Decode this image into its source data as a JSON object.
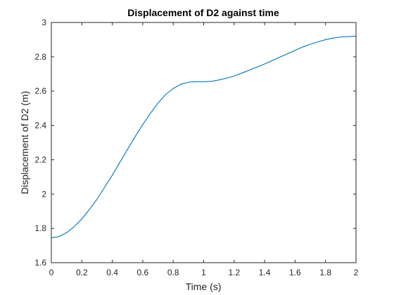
{
  "chart_data": {
    "type": "line",
    "title": "Displacement of D2 against time",
    "xlabel": "Time (s)",
    "ylabel": "Displacement of D2 (m)",
    "xlim": [
      0,
      2
    ],
    "ylim": [
      1.6,
      3
    ],
    "grid": false,
    "xticks": [
      0,
      0.2,
      0.4,
      0.6,
      0.8,
      1,
      1.2,
      1.4,
      1.6,
      1.8,
      2
    ],
    "yticks": [
      1.6,
      1.8,
      2,
      2.2,
      2.4,
      2.6,
      2.8,
      3
    ],
    "xtick_labels": [
      "0",
      "0.2",
      "0.4",
      "0.6",
      "0.8",
      "1",
      "1.2",
      "1.4",
      "1.6",
      "1.8",
      "2"
    ],
    "ytick_labels": [
      "1.6",
      "1.8",
      "2",
      "2.2",
      "2.4",
      "2.6",
      "2.8",
      "3"
    ],
    "series": [
      {
        "color": "#0072bd",
        "x": [
          0,
          0.05,
          0.1,
          0.15,
          0.2,
          0.25,
          0.3,
          0.35,
          0.4,
          0.45,
          0.5,
          0.55,
          0.6,
          0.65,
          0.7,
          0.75,
          0.8,
          0.85,
          0.9,
          0.95,
          1.0,
          1.05,
          1.1,
          1.15,
          1.2,
          1.25,
          1.3,
          1.35,
          1.4,
          1.45,
          1.5,
          1.55,
          1.6,
          1.65,
          1.7,
          1.75,
          1.8,
          1.85,
          1.9,
          1.95,
          2.0
        ],
        "y": [
          1.745,
          1.752,
          1.775,
          1.81,
          1.855,
          1.91,
          1.97,
          2.04,
          2.11,
          2.185,
          2.26,
          2.335,
          2.405,
          2.47,
          2.53,
          2.58,
          2.615,
          2.64,
          2.652,
          2.655,
          2.655,
          2.657,
          2.665,
          2.675,
          2.688,
          2.705,
          2.722,
          2.74,
          2.758,
          2.778,
          2.798,
          2.818,
          2.838,
          2.857,
          2.873,
          2.887,
          2.9,
          2.909,
          2.915,
          2.918,
          2.92
        ]
      }
    ]
  }
}
